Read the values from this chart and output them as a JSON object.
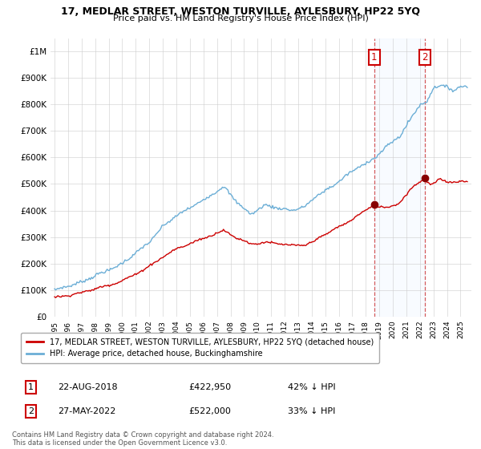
{
  "title": "17, MEDLAR STREET, WESTON TURVILLE, AYLESBURY, HP22 5YQ",
  "subtitle": "Price paid vs. HM Land Registry's House Price Index (HPI)",
  "legend_line1": "17, MEDLAR STREET, WESTON TURVILLE, AYLESBURY, HP22 5YQ (detached house)",
  "legend_line2": "HPI: Average price, detached house, Buckinghamshire",
  "footnote": "Contains HM Land Registry data © Crown copyright and database right 2024.\nThis data is licensed under the Open Government Licence v3.0.",
  "sale1_date": "22-AUG-2018",
  "sale1_price_str": "£422,950",
  "sale1_hpi_str": "42% ↓ HPI",
  "sale2_date": "27-MAY-2022",
  "sale2_price_str": "£522,000",
  "sale2_hpi_str": "33% ↓ HPI",
  "hpi_color": "#6baed6",
  "sale_color": "#cc0000",
  "shade_color": "#ddeeff",
  "ylim": [
    0,
    1050000
  ],
  "yticks": [
    0,
    100000,
    200000,
    300000,
    400000,
    500000,
    600000,
    700000,
    800000,
    900000,
    1000000
  ],
  "sale1_year": 2018.625,
  "sale1_price": 422950,
  "sale2_year": 2022.375,
  "sale2_price": 522000,
  "xmin": 1995,
  "xmax": 2025
}
